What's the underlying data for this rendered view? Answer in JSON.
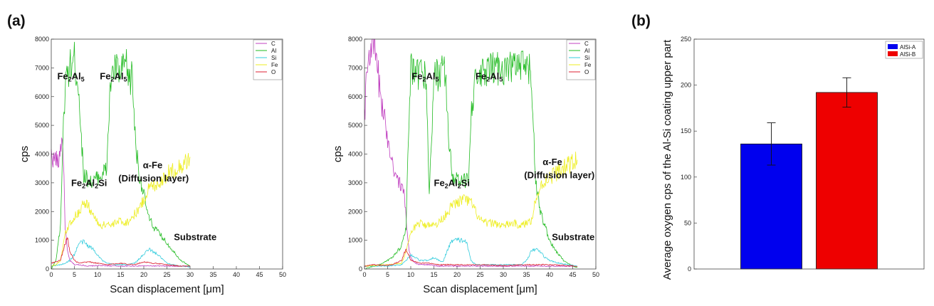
{
  "panel_labels": {
    "a": "(a)",
    "b": "(b)"
  },
  "chart_data": [
    {
      "type": "line",
      "xlabel": "Scan displacement [μm]",
      "ylabel": "cps",
      "xlim": [
        0,
        50
      ],
      "ylim": [
        0,
        8000
      ],
      "xticks": [
        0,
        5,
        10,
        15,
        20,
        25,
        30,
        35,
        40,
        45,
        50
      ],
      "yticks": [
        0,
        1000,
        2000,
        3000,
        4000,
        5000,
        6000,
        7000,
        8000
      ],
      "legend_position": "top-right",
      "series": [
        {
          "name": "C",
          "color": "#c040c0",
          "x": [
            0,
            0.5,
            1,
            1.5,
            2,
            2.5,
            3,
            3.5,
            4,
            5,
            6,
            8,
            10,
            15,
            20,
            25,
            30
          ],
          "y": [
            4000,
            3800,
            3900,
            3600,
            4300,
            4500,
            1500,
            600,
            300,
            150,
            150,
            100,
            120,
            100,
            110,
            100,
            100
          ]
        },
        {
          "name": "Al",
          "color": "#22bb22",
          "x": [
            0,
            1,
            2,
            2.5,
            3,
            3.5,
            4,
            5,
            6,
            6.5,
            7,
            8,
            9,
            10,
            11,
            12,
            12.5,
            13,
            14,
            15,
            16,
            17,
            17.5,
            18,
            18.5,
            19,
            20,
            21,
            22,
            23,
            24,
            25,
            26,
            27,
            28,
            29,
            30
          ],
          "y": [
            0,
            300,
            1500,
            4500,
            6200,
            6800,
            7000,
            7300,
            6200,
            4500,
            3300,
            3100,
            3000,
            3200,
            3300,
            3500,
            5500,
            6800,
            7000,
            6700,
            7200,
            6500,
            6800,
            5000,
            4000,
            3300,
            2600,
            1800,
            1500,
            1300,
            1100,
            900,
            700,
            500,
            300,
            200,
            100
          ]
        },
        {
          "name": "Si",
          "color": "#33ccdd",
          "x": [
            0,
            2,
            3,
            4,
            5,
            6,
            7,
            8,
            9,
            10,
            11,
            12,
            14,
            16,
            18,
            20,
            21,
            22,
            23,
            24,
            25,
            26,
            28,
            30
          ],
          "y": [
            100,
            150,
            200,
            300,
            500,
            900,
            950,
            800,
            700,
            500,
            300,
            200,
            150,
            150,
            200,
            500,
            700,
            600,
            500,
            350,
            200,
            150,
            100,
            80
          ]
        },
        {
          "name": "Fe",
          "color": "#eeee22",
          "x": [
            0,
            1,
            2,
            3,
            4,
            5,
            6,
            7,
            8,
            9,
            10,
            11,
            12,
            13,
            14,
            15,
            16,
            17,
            18,
            19,
            20,
            21,
            22,
            23,
            24,
            25,
            26,
            27,
            28,
            29,
            30
          ],
          "y": [
            100,
            150,
            300,
            1200,
            1600,
            1800,
            2000,
            2300,
            2200,
            1900,
            1600,
            1500,
            1600,
            1500,
            1600,
            1700,
            1600,
            1700,
            1900,
            2100,
            2400,
            2800,
            2900,
            3000,
            3100,
            3300,
            3400,
            3500,
            3600,
            3700,
            3900
          ]
        },
        {
          "name": "O",
          "color": "#dd2233",
          "x": [
            0,
            1,
            2,
            3,
            3.5,
            4,
            5,
            6,
            8,
            10,
            12,
            15,
            18,
            20,
            22,
            25,
            28,
            30
          ],
          "y": [
            200,
            250,
            300,
            900,
            1100,
            600,
            300,
            200,
            250,
            200,
            150,
            200,
            150,
            250,
            200,
            150,
            100,
            100
          ]
        }
      ],
      "annotations": [
        {
          "text": "Fe",
          "sub": "2",
          "text2": "Al",
          "sub2": "5",
          "at": [
            1.3,
            6600
          ]
        },
        {
          "text": "Fe",
          "sub": "2",
          "text2": "Al",
          "sub2": "5",
          "at": [
            10.5,
            6600
          ]
        },
        {
          "text": "Fe",
          "sub": "2",
          "text2": "Al",
          "sub2": "2",
          "text3": "Si",
          "at": [
            4.3,
            2880
          ]
        },
        {
          "text": "α-Fe",
          "at": [
            19.8,
            3500
          ]
        },
        {
          "text": "(Diffusion layer)",
          "at": [
            14.5,
            3050
          ]
        },
        {
          "text": "Substrate",
          "at": [
            26.5,
            1000
          ]
        }
      ]
    },
    {
      "type": "line",
      "xlabel": "Scan displacement [μm]",
      "ylabel": "cps",
      "xlim": [
        0,
        50
      ],
      "ylim": [
        0,
        8000
      ],
      "xticks": [
        0,
        5,
        10,
        15,
        20,
        25,
        30,
        35,
        40,
        45,
        50
      ],
      "yticks": [
        0,
        1000,
        2000,
        3000,
        4000,
        5000,
        6000,
        7000,
        8000
      ],
      "legend_position": "top-right",
      "series": [
        {
          "name": "C",
          "color": "#c040c0",
          "x": [
            0,
            0.5,
            1,
            1.5,
            2,
            2.5,
            3,
            3.5,
            4,
            4.5,
            5,
            5.5,
            6,
            6.5,
            7,
            7.5,
            8,
            8.5,
            9,
            9.5,
            10,
            11,
            12,
            14,
            16,
            20,
            25,
            30,
            35,
            40,
            45
          ],
          "y": [
            5300,
            6800,
            7500,
            7900,
            7800,
            7300,
            6700,
            6000,
            5500,
            5000,
            4600,
            4200,
            3800,
            3400,
            3200,
            3000,
            2800,
            2700,
            1800,
            800,
            400,
            200,
            150,
            150,
            100,
            100,
            100,
            100,
            100,
            100,
            100
          ]
        },
        {
          "name": "Al",
          "color": "#22bb22",
          "x": [
            0,
            2,
            4,
            6,
            7,
            8,
            9,
            9.5,
            10,
            11,
            12,
            13,
            13.5,
            14,
            15,
            16,
            17,
            17.5,
            18,
            19,
            20,
            21,
            22,
            22.5,
            23,
            24,
            25,
            26,
            27,
            28,
            29,
            30,
            31,
            32,
            33,
            34,
            35,
            36,
            36.5,
            37,
            38,
            39,
            40,
            41,
            42,
            43,
            44,
            45,
            46
          ],
          "y": [
            0,
            100,
            200,
            400,
            600,
            800,
            1500,
            4500,
            7000,
            6600,
            6800,
            6900,
            5800,
            2500,
            6700,
            6800,
            7000,
            6800,
            5000,
            3200,
            3100,
            3000,
            3100,
            3300,
            5500,
            6500,
            6700,
            6800,
            6900,
            7000,
            7000,
            7000,
            6900,
            7100,
            7000,
            7000,
            7000,
            6800,
            5000,
            3000,
            2000,
            1500,
            1000,
            700,
            500,
            300,
            200,
            100,
            50
          ]
        },
        {
          "name": "Si",
          "color": "#33ccdd",
          "x": [
            0,
            5,
            8,
            9,
            10,
            12,
            14,
            15,
            16,
            17,
            18,
            19,
            20,
            21,
            22,
            23,
            24,
            26,
            30,
            34,
            35,
            36,
            37,
            38,
            39,
            40,
            42,
            46
          ],
          "y": [
            100,
            100,
            150,
            300,
            500,
            300,
            300,
            400,
            300,
            250,
            700,
            1000,
            1000,
            1000,
            950,
            300,
            150,
            150,
            150,
            150,
            300,
            600,
            700,
            600,
            400,
            300,
            200,
            100
          ]
        },
        {
          "name": "Fe",
          "color": "#eeee22",
          "x": [
            0,
            5,
            8,
            9,
            10,
            11,
            12,
            13,
            14,
            15,
            16,
            17,
            18,
            19,
            20,
            21,
            22,
            23,
            24,
            25,
            26,
            28,
            30,
            32,
            34,
            35,
            36,
            37,
            38,
            39,
            40,
            41,
            42,
            43,
            44,
            45,
            46
          ],
          "y": [
            100,
            150,
            200,
            600,
            1200,
            1500,
            1600,
            1500,
            1600,
            1500,
            1600,
            1800,
            2000,
            2200,
            2300,
            2400,
            2400,
            2300,
            2000,
            1700,
            1600,
            1600,
            1500,
            1600,
            1500,
            1600,
            1700,
            2400,
            2800,
            3100,
            3200,
            3300,
            3400,
            3500,
            3600,
            3700,
            3800
          ]
        },
        {
          "name": "O",
          "color": "#dd2233",
          "x": [
            0,
            2,
            4,
            6,
            8,
            9,
            10,
            12,
            14,
            16,
            20,
            25,
            30,
            35,
            40,
            46
          ],
          "y": [
            100,
            150,
            120,
            150,
            300,
            700,
            300,
            200,
            200,
            150,
            150,
            150,
            120,
            150,
            150,
            100
          ]
        }
      ],
      "annotations": [
        {
          "text": "Fe",
          "sub": "2",
          "text2": "Al",
          "sub2": "5",
          "at": [
            10.2,
            6600
          ]
        },
        {
          "text": "Fe",
          "sub": "2",
          "text2": "Al",
          "sub2": "5",
          "at": [
            24.0,
            6600
          ]
        },
        {
          "text": "Fe",
          "sub": "2",
          "text2": "Al",
          "sub2": "2",
          "text3": "Si",
          "at": [
            15.0,
            2880
          ]
        },
        {
          "text": "α-Fe",
          "at": [
            38.5,
            3620
          ]
        },
        {
          "text": "(Diffusion layer)",
          "at": [
            34.5,
            3160
          ]
        },
        {
          "text": "Substrate",
          "at": [
            40.5,
            1000
          ]
        }
      ]
    },
    {
      "type": "bar",
      "categories": [
        "AlSi-A",
        "AlSi-B"
      ],
      "values": [
        136,
        192
      ],
      "errors": [
        23,
        16
      ],
      "colors": [
        "#0000ee",
        "#ee0000"
      ],
      "ylabel": "Average oxygen cps of the Al-Si coating upper part",
      "ylim": [
        0,
        250
      ],
      "yticks": [
        0,
        50,
        100,
        150,
        200,
        250
      ],
      "legend_position": "top-right",
      "legend": [
        {
          "name": "AlSi-A",
          "color": "#0000ee"
        },
        {
          "name": "AlSi-B",
          "color": "#ee0000"
        }
      ]
    }
  ]
}
